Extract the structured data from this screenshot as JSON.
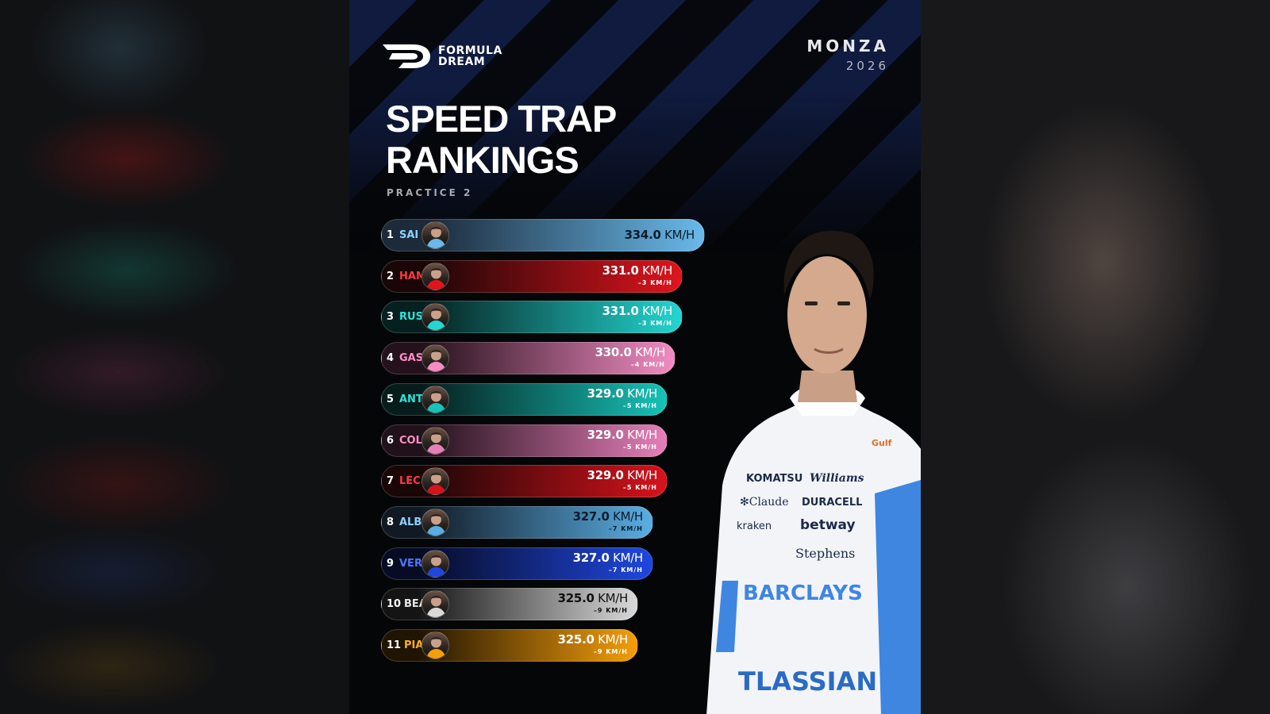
{
  "brand": {
    "name_line1": "FORMULA",
    "name_line2": "DREAM"
  },
  "event": {
    "city": "MONZA",
    "year": "2026"
  },
  "title": {
    "line1": "SPEED TRAP",
    "line2": "RANKINGS"
  },
  "subtitle": "PRACTICE 2",
  "chart_data": {
    "type": "bar",
    "orientation": "horizontal",
    "unit": "KM/H",
    "rows": [
      {
        "rank": "1",
        "driver": "SAI",
        "speed": "334.0",
        "delta": "",
        "value": 334.0,
        "colors": [
          "#1c2a3a",
          "#69b9ea"
        ],
        "code_color": "#8fd0ff",
        "text_color": "#0c1c2c"
      },
      {
        "rank": "2",
        "driver": "HAM",
        "speed": "331.0",
        "delta": "–3 KM/H",
        "value": 331.0,
        "colors": [
          "#1a0607",
          "#e0141c"
        ],
        "code_color": "#ff3a40",
        "text_color": "#ffffff"
      },
      {
        "rank": "3",
        "driver": "RUS",
        "speed": "331.0",
        "delta": "–3 KM/H",
        "value": 331.0,
        "colors": [
          "#06201f",
          "#23d6d0"
        ],
        "code_color": "#30e0d8",
        "text_color": "#ffffff"
      },
      {
        "rank": "4",
        "driver": "GAS",
        "speed": "330.0",
        "delta": "–4 KM/H",
        "value": 330.0,
        "colors": [
          "#24111b",
          "#f28cc3"
        ],
        "code_color": "#ff8ec8",
        "text_color": "#ffffff"
      },
      {
        "rank": "5",
        "driver": "ANT",
        "speed": "329.0",
        "delta": "–5 KM/H",
        "value": 329.0,
        "colors": [
          "#061d1c",
          "#17c2b7"
        ],
        "code_color": "#30e0d8",
        "text_color": "#ffffff"
      },
      {
        "rank": "6",
        "driver": "COL",
        "speed": "329.0",
        "delta": "–5 KM/H",
        "value": 329.0,
        "colors": [
          "#20111a",
          "#e67fb9"
        ],
        "code_color": "#ff8ec8",
        "text_color": "#ffffff"
      },
      {
        "rank": "7",
        "driver": "LEC",
        "speed": "329.0",
        "delta": "–5 KM/H",
        "value": 329.0,
        "colors": [
          "#1a0607",
          "#d8121b"
        ],
        "code_color": "#ff3a40",
        "text_color": "#ffffff"
      },
      {
        "rank": "8",
        "driver": "ALB",
        "speed": "327.0",
        "delta": "–7 KM/H",
        "value": 327.0,
        "colors": [
          "#111a24",
          "#5aaee4"
        ],
        "code_color": "#8fd0ff",
        "text_color": "#0c1c2c"
      },
      {
        "rank": "9",
        "driver": "VER",
        "speed": "327.0",
        "delta": "–7 KM/H",
        "value": 327.0,
        "colors": [
          "#070b24",
          "#1f47e0"
        ],
        "code_color": "#4a78ff",
        "text_color": "#ffffff"
      },
      {
        "rank": "10",
        "driver": "BEA",
        "speed": "325.0",
        "delta": "–9 KM/H",
        "value": 325.0,
        "colors": [
          "#141414",
          "#d9d9d9"
        ],
        "code_color": "#e8e8e8",
        "text_color": "#111111"
      },
      {
        "rank": "11",
        "driver": "PIA",
        "speed": "325.0",
        "delta": "–9 KM/H",
        "value": 325.0,
        "colors": [
          "#201402",
          "#f59e0b"
        ],
        "code_color": "#ffb020",
        "text_color": "#ffffff"
      }
    ]
  },
  "driver_photo": {
    "kit_sponsors": [
      "KOMATSU",
      "Williams",
      "Claude",
      "DURACELL",
      "Kraken",
      "betway",
      "Stephens",
      "BARCLAYS",
      "ATLASSIAN",
      "Gulf"
    ]
  }
}
